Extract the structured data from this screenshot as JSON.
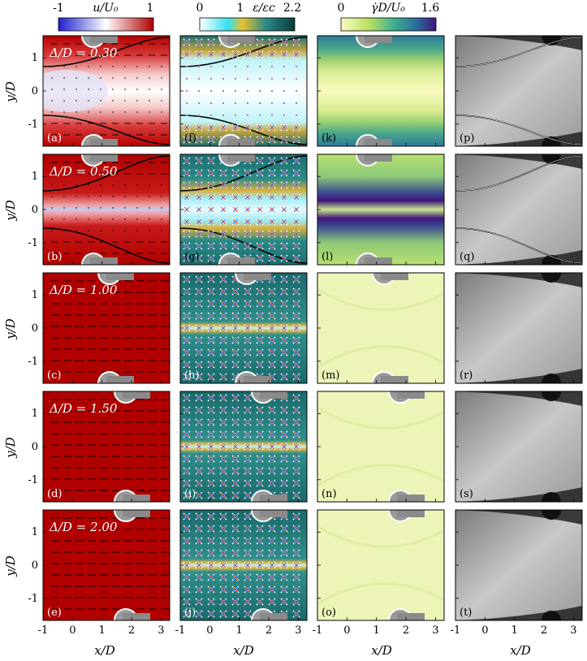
{
  "colorbars": [
    {
      "label": "u/U₀",
      "min_label": "-1",
      "max_label": "1",
      "colors": [
        "#1f1fd0",
        "#ffffff",
        "#b00000"
      ]
    },
    {
      "label": "ε/εc",
      "min_label": "0",
      "mid_label": "1",
      "max_label": "2.2",
      "colors": [
        "#ffffff",
        "#35e0f0",
        "#e8c030",
        "#2a8a88",
        "#0a3a3a"
      ]
    },
    {
      "label": "γ̇D/U₀",
      "min_label": "0",
      "max_label": "1.6",
      "colors": [
        "#fafac0",
        "#b8e060",
        "#40b090",
        "#2b6a9a",
        "#40157a"
      ]
    }
  ],
  "delta_labels": [
    "Δ/D = 0.30",
    "Δ/D = 0.50",
    "Δ/D = 1.00",
    "Δ/D = 1.50",
    "Δ/D = 2.00"
  ],
  "panel_letters": [
    [
      "(a)",
      "(f)",
      "(k)",
      "(p)"
    ],
    [
      "(b)",
      "(g)",
      "(l)",
      "(q)"
    ],
    [
      "(c)",
      "(h)",
      "(m)",
      "(r)"
    ],
    [
      "(d)",
      "(i)",
      "(n)",
      "(s)"
    ],
    [
      "(e)",
      "(j)",
      "(o)",
      "(t)"
    ]
  ],
  "y_axis": {
    "label": "y/D",
    "ticks": [
      "1",
      "0",
      "-1"
    ]
  },
  "x_axis": {
    "label": "x/D",
    "ticks": [
      "-1",
      "0",
      "1",
      "2",
      "3"
    ]
  }
}
